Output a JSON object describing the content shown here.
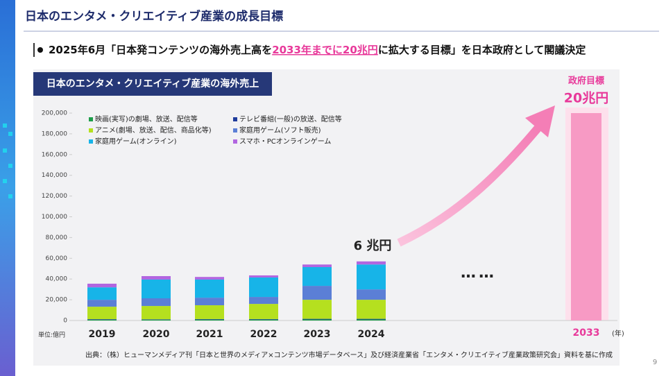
{
  "slide": {
    "title": "日本のエンタメ・クリエイティブ産業の成長目標",
    "headline_before": "2025年6月「日本発コンテンツの海外売上高を",
    "headline_highlight": "2033年までに20兆円",
    "headline_after": "に拡大する目標」を日本政府として閣議決定",
    "source": "出典：（株）ヒューマンメディア刊「日本と世界のメディア×コンテンツ市場データベース」及び経済産業省「エンタメ・クリエイティブ産業政策研究会」資料を基に作成",
    "page_number": "9"
  },
  "chart_data": {
    "type": "stacked_bar",
    "title": "日本のエンタメ・クリエイティブ産業の海外売上",
    "unit_label": "単位:億円",
    "x_unit_label": "(年)",
    "categories": [
      "2019",
      "2020",
      "2021",
      "2022",
      "2023",
      "2024"
    ],
    "series": [
      {
        "name": "映画(実写)の劇場、放送、配信等",
        "color": "#1e9e4a",
        "values": [
          800,
          800,
          900,
          900,
          1000,
          1000
        ]
      },
      {
        "name": "テレビ番組(一般)の放送、配信等",
        "color": "#1f3c9c",
        "values": [
          500,
          400,
          500,
          500,
          600,
          600
        ]
      },
      {
        "name": "アニメ(劇場、放送、配信、商品化等)",
        "color": "#b5e01f",
        "values": [
          12000,
          12800,
          13300,
          14600,
          18400,
          18400
        ]
      },
      {
        "name": "家庭用ゲーム(ソフト販売)",
        "color": "#5b7fd6",
        "values": [
          6700,
          7400,
          7300,
          6700,
          13400,
          10000
        ]
      },
      {
        "name": "家庭用ゲーム(オンライン)",
        "color": "#17b4e8",
        "values": [
          12000,
          18100,
          17500,
          18800,
          18100,
          24000
        ]
      },
      {
        "name": "スマホ・PCオンラインゲーム",
        "color": "#b266e0",
        "values": [
          3500,
          3300,
          2500,
          2000,
          2500,
          3000
        ]
      }
    ],
    "ylim": [
      0,
      200000
    ],
    "yticks": [
      0,
      {
        "value": 20000,
        "label": "20,000"
      },
      {
        "value": 40000,
        "label": "40,000"
      },
      {
        "value": 60000,
        "label": "60,000"
      },
      {
        "value": 80000,
        "label": "80,000"
      },
      {
        "value": 100000,
        "label": "100,000"
      },
      {
        "value": 120000,
        "label": "120,000"
      },
      {
        "value": 140000,
        "label": "140,000"
      },
      {
        "value": 160000,
        "label": "160,000"
      },
      {
        "value": 180000,
        "label": "180,000"
      },
      {
        "value": 200000,
        "label": "200,000"
      }
    ],
    "annotation_current": "6 兆円",
    "annotation_gap": "……",
    "target": {
      "category": "2033",
      "title": "政府目標",
      "value": 200000,
      "value_label": "20兆円",
      "color": "#f79ac4"
    }
  }
}
